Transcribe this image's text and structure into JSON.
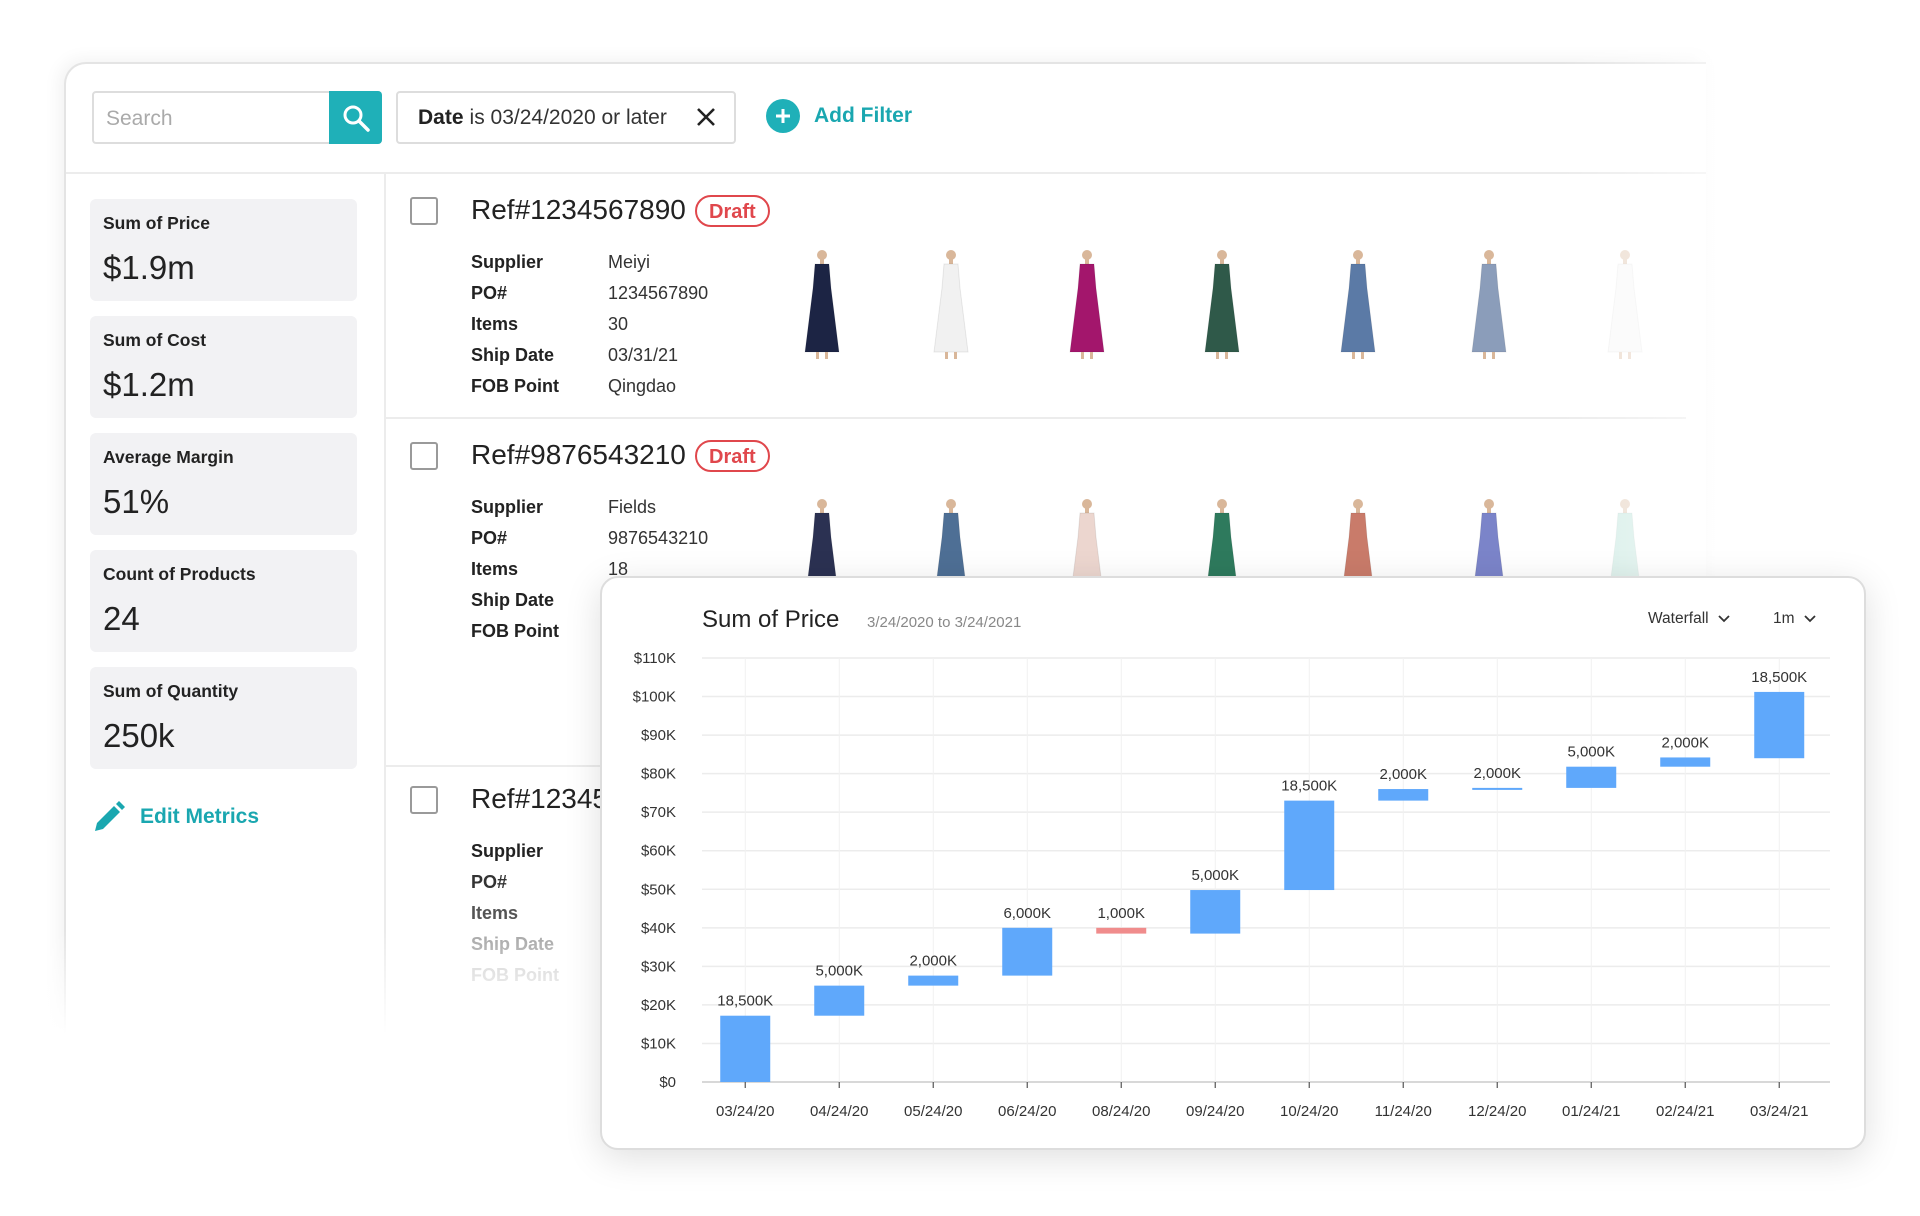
{
  "toolbar": {
    "search_placeholder": "Search",
    "search_value": "",
    "filter": {
      "field": "Date",
      "condition": "is 03/24/2020 or later"
    },
    "add_filter_label": "Add Filter"
  },
  "metrics": [
    {
      "title": "Sum of Price",
      "value": "$1.9m"
    },
    {
      "title": "Sum of Cost",
      "value": "$1.2m"
    },
    {
      "title": "Average Margin",
      "value": "51%"
    },
    {
      "title": "Count of Products",
      "value": "24"
    },
    {
      "title": "Sum of Quantity",
      "value": "250k"
    }
  ],
  "edit_metrics_label": "Edit Metrics",
  "field_labels": [
    "Supplier",
    "PO#",
    "Items",
    "Ship Date",
    "FOB Point"
  ],
  "records": [
    {
      "ref": "Ref#1234567890",
      "status": "Draft",
      "values": [
        "Meiyi",
        "1234567890",
        "30",
        "03/31/21",
        "Qingdao"
      ],
      "product_colors": [
        "#1c2444",
        "#f1f1f1",
        "#a3166c",
        "#2f5949",
        "#5b7aa6",
        "#8b9dba",
        "#f4f4f4"
      ]
    },
    {
      "ref": "Ref#9876543210",
      "status": "Draft",
      "values": [
        "Fields",
        "9876543210",
        "18"
      ],
      "product_colors": [
        "#2b3152",
        "#4e6f95",
        "#ecd6cf",
        "#2e7a5d",
        "#c97b6a",
        "#7b84c9",
        "#a9dccf"
      ]
    },
    {
      "ref": "Ref#12345",
      "status": "",
      "values": [],
      "product_colors": []
    }
  ],
  "chart_data": {
    "type": "waterfall",
    "title": "Sum of Price",
    "subtitle": "3/24/2020 to 3/24/2021",
    "chart_type_select": "Waterfall",
    "interval_select": "1m",
    "categories": [
      "03/24/20",
      "04/24/20",
      "05/24/20",
      "06/24/20",
      "08/24/20",
      "09/24/20",
      "10/24/20",
      "11/24/20",
      "12/24/20",
      "01/24/21",
      "02/24/21",
      "03/24/21"
    ],
    "bars": [
      {
        "start": 0,
        "end": 17200,
        "label": "18,500K"
      },
      {
        "start": 17200,
        "end": 25000,
        "label": "5,000K"
      },
      {
        "start": 25000,
        "end": 27600,
        "label": "2,000K"
      },
      {
        "start": 27600,
        "end": 40000,
        "label": "6,000K"
      },
      {
        "start": 40000,
        "end": 38500,
        "label": "1,000K"
      },
      {
        "start": 38500,
        "end": 49800,
        "label": "5,000K"
      },
      {
        "start": 49800,
        "end": 73000,
        "label": "18,500K"
      },
      {
        "start": 73000,
        "end": 76000,
        "label": "2,000K"
      },
      {
        "start": 76000,
        "end": 76300,
        "label": "2,000K"
      },
      {
        "start": 76300,
        "end": 81800,
        "label": "5,000K"
      },
      {
        "start": 81800,
        "end": 84200,
        "label": "2,000K"
      },
      {
        "start": 84000,
        "end": 101200,
        "label": "18,500K"
      }
    ],
    "ylim": [
      0,
      110000
    ],
    "yticks": [
      "$0",
      "$10K",
      "$20K",
      "$30K",
      "$40K",
      "$50K",
      "$60K",
      "$70K",
      "$80K",
      "$90K",
      "$100K",
      "$110K"
    ],
    "grid": true,
    "colors": {
      "increase": "#5fa8fb",
      "decrease": "#f08c8c"
    }
  },
  "colors": {
    "accent": "#1fb0b8",
    "draft": "#e0474c"
  }
}
